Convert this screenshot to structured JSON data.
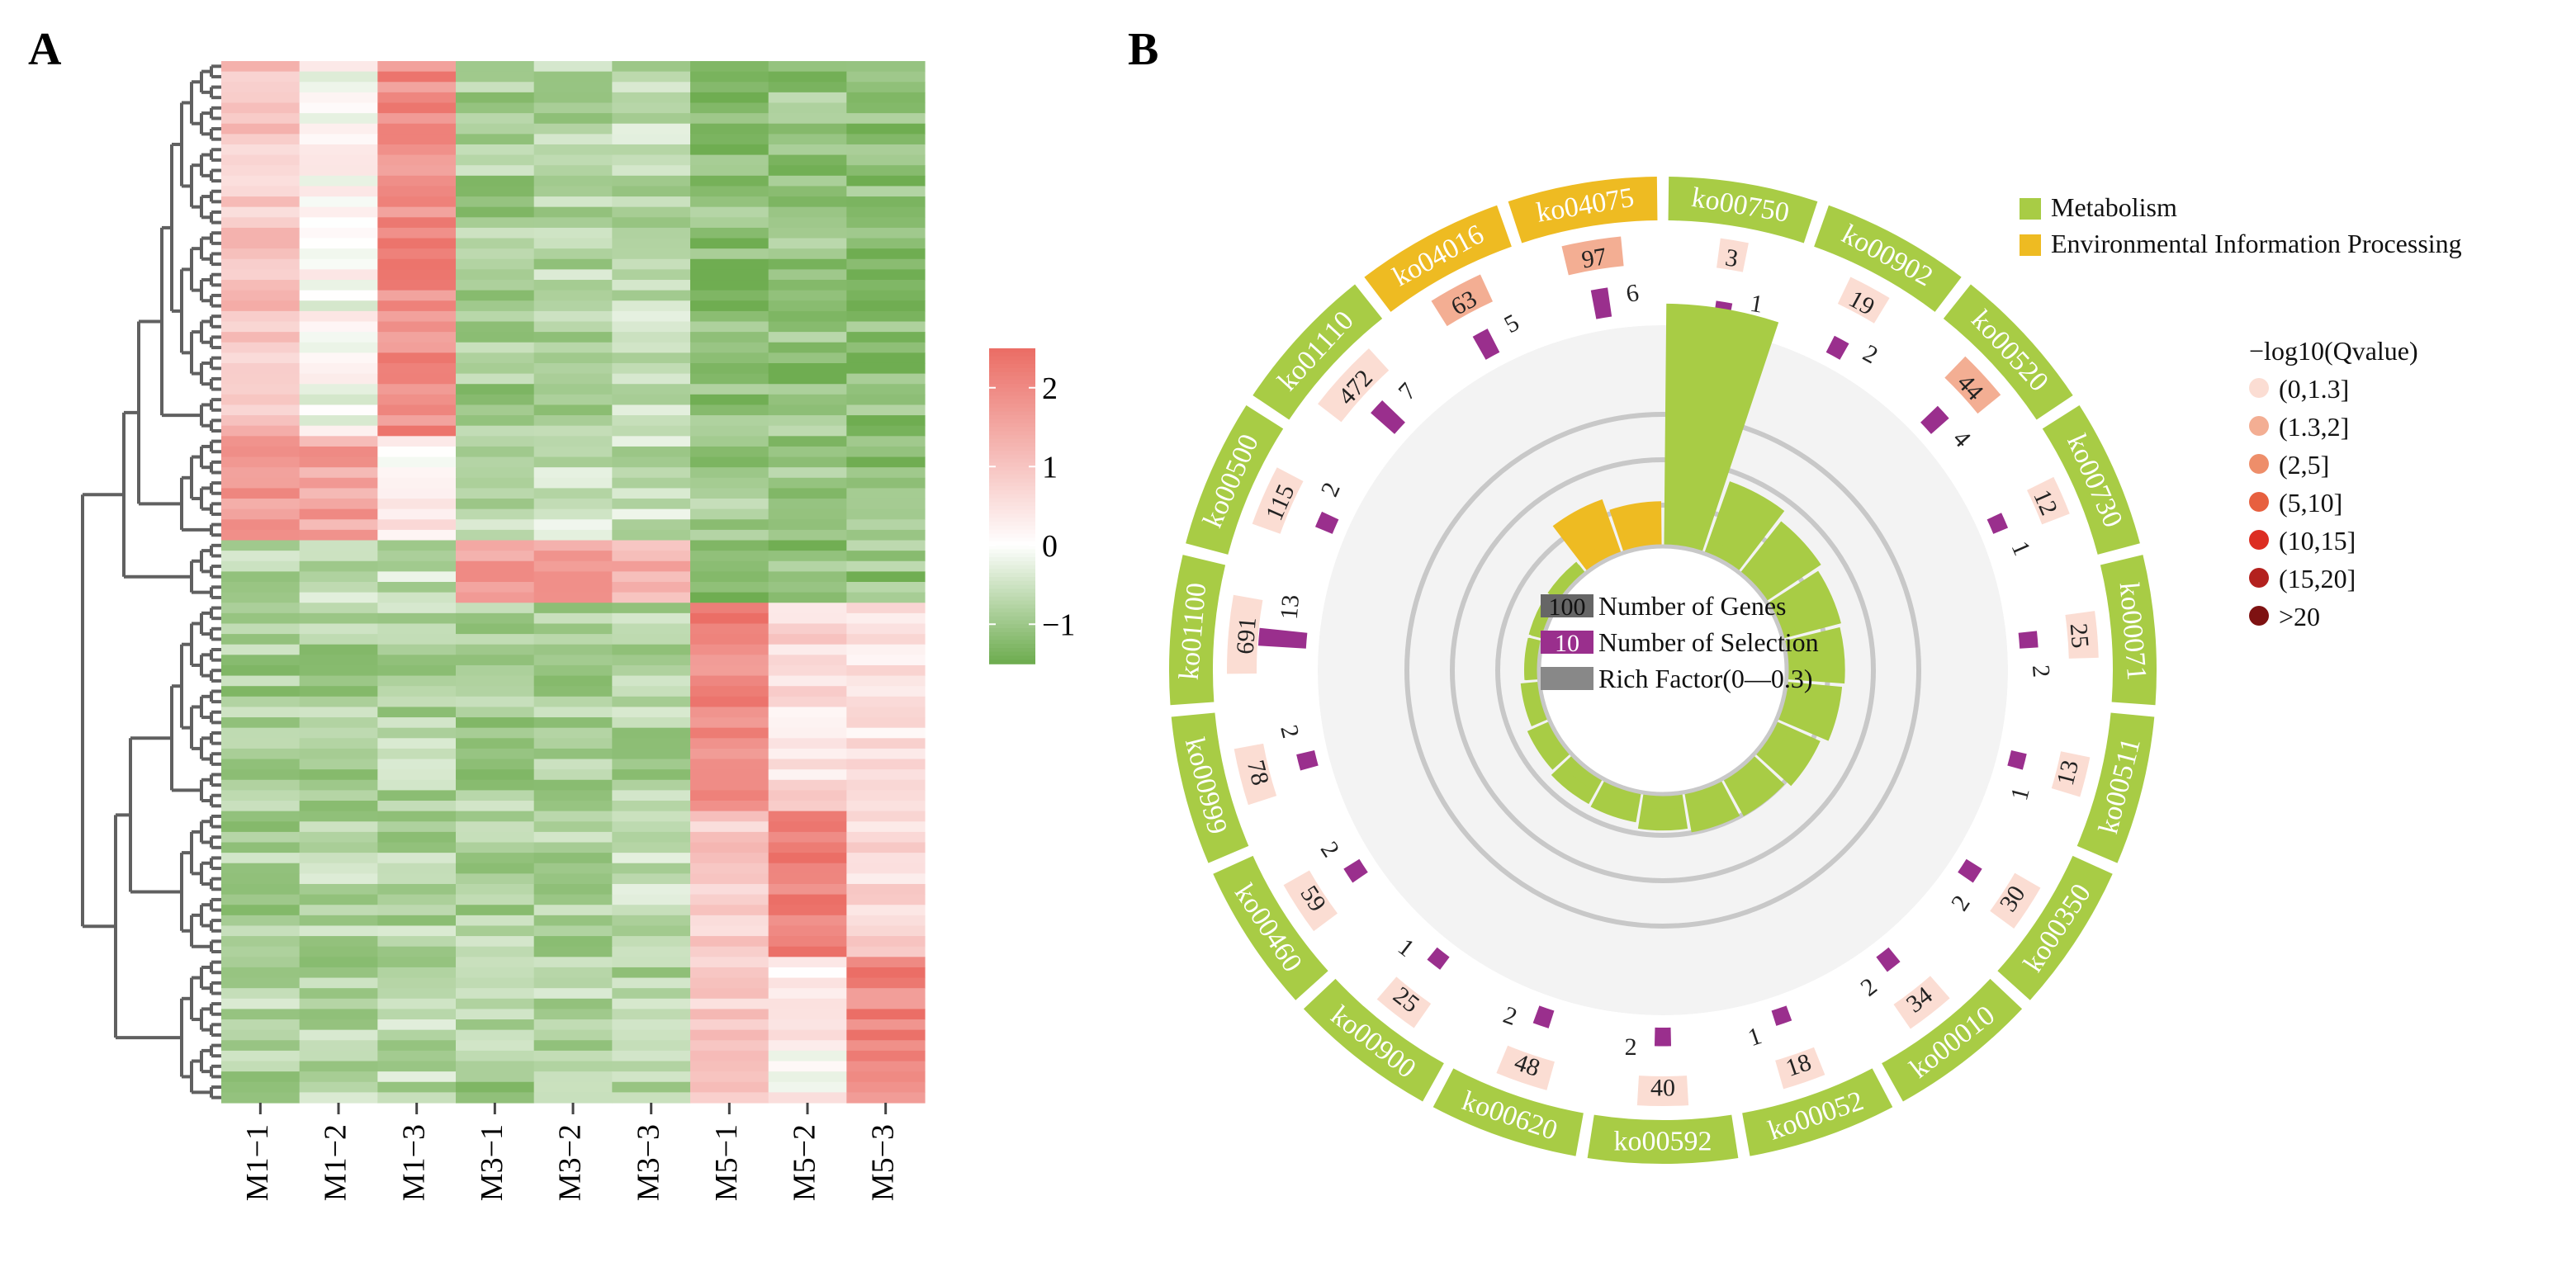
{
  "panel_a_label": "A",
  "panel_b_label": "B",
  "chart_data": [
    {
      "type": "heatmap",
      "panel": "A",
      "columns": [
        "M1−1",
        "M1−2",
        "M1−3",
        "M3−1",
        "M3−2",
        "M3−3",
        "M5−1",
        "M5−2",
        "M5−3"
      ],
      "n_rows": 100,
      "color_scale": {
        "low": "#6FAD51",
        "mid": "#FFFFFF",
        "high": "#EB6E66",
        "range": [
          -1.5,
          2.5
        ]
      },
      "colorbar_ticks": [
        "2",
        "1",
        "0",
        "−1"
      ],
      "colorbar_tick_values": [
        2,
        1,
        0,
        -1
      ],
      "row_clusters": [
        {
          "rows": [
            0,
            36
          ],
          "pattern": [
            1.0,
            0.0,
            2.0,
            -0.9,
            -0.8,
            -0.7,
            -1.2,
            -1.1,
            -1.2
          ]
        },
        {
          "rows": [
            36,
            46
          ],
          "pattern": [
            1.8,
            1.6,
            0.3,
            -0.6,
            -0.5,
            -0.6,
            -1.0,
            -1.0,
            -1.1
          ]
        },
        {
          "rows": [
            46,
            52
          ],
          "pattern": [
            -0.8,
            -0.6,
            -0.6,
            1.6,
            1.5,
            1.4,
            -1.3,
            -1.2,
            -1.1
          ]
        },
        {
          "rows": [
            52,
            72
          ],
          "pattern": [
            -0.9,
            -0.9,
            -0.8,
            -0.9,
            -0.9,
            -0.8,
            2.1,
            0.6,
            0.5
          ]
        },
        {
          "rows": [
            72,
            86
          ],
          "pattern": [
            -0.9,
            -0.8,
            -0.8,
            -0.8,
            -0.8,
            -0.7,
            0.9,
            2.1,
            0.6
          ]
        },
        {
          "rows": [
            86,
            100
          ],
          "pattern": [
            -0.8,
            -0.8,
            -0.7,
            -0.9,
            -0.8,
            -0.8,
            0.8,
            0.2,
            2.1
          ]
        }
      ]
    },
    {
      "type": "circos",
      "panel": "B",
      "categories": [
        {
          "id": "ko04075",
          "class": "Environmental Information Processing",
          "genes": 97,
          "selection": 6,
          "rich": 0.062,
          "qbin": 1
        },
        {
          "id": "ko00750",
          "class": "Metabolism",
          "genes": 3,
          "selection": 1,
          "rich": 0.333,
          "qbin": 0
        },
        {
          "id": "ko00902",
          "class": "Metabolism",
          "genes": 19,
          "selection": 2,
          "rich": 0.105,
          "qbin": 0
        },
        {
          "id": "ko00520",
          "class": "Metabolism",
          "genes": 44,
          "selection": 4,
          "rich": 0.091,
          "qbin": 1
        },
        {
          "id": "ko00730",
          "class": "Metabolism",
          "genes": 12,
          "selection": 1,
          "rich": 0.083,
          "qbin": 0
        },
        {
          "id": "ko00071",
          "class": "Metabolism",
          "genes": 25,
          "selection": 2,
          "rich": 0.08,
          "qbin": 0
        },
        {
          "id": "ko00511",
          "class": "Metabolism",
          "genes": 13,
          "selection": 1,
          "rich": 0.077,
          "qbin": 0
        },
        {
          "id": "ko00350",
          "class": "Metabolism",
          "genes": 30,
          "selection": 2,
          "rich": 0.067,
          "qbin": 0
        },
        {
          "id": "ko00010",
          "class": "Metabolism",
          "genes": 34,
          "selection": 2,
          "rich": 0.059,
          "qbin": 0
        },
        {
          "id": "ko00052",
          "class": "Metabolism",
          "genes": 18,
          "selection": 1,
          "rich": 0.056,
          "qbin": 0
        },
        {
          "id": "ko00592",
          "class": "Metabolism",
          "genes": 40,
          "selection": 2,
          "rich": 0.05,
          "qbin": 0
        },
        {
          "id": "ko00620",
          "class": "Metabolism",
          "genes": 48,
          "selection": 2,
          "rich": 0.042,
          "qbin": 0
        },
        {
          "id": "ko00900",
          "class": "Metabolism",
          "genes": 25,
          "selection": 1,
          "rich": 0.04,
          "qbin": 0
        },
        {
          "id": "ko00460",
          "class": "Metabolism",
          "genes": 59,
          "selection": 2,
          "rich": 0.034,
          "qbin": 0
        },
        {
          "id": "ko00999",
          "class": "Metabolism",
          "genes": 78,
          "selection": 2,
          "rich": 0.026,
          "qbin": 0
        },
        {
          "id": "ko01100",
          "class": "Metabolism",
          "genes": 691,
          "selection": 13,
          "rich": 0.019,
          "qbin": 0
        },
        {
          "id": "ko00500",
          "class": "Metabolism",
          "genes": 115,
          "selection": 2,
          "rich": 0.017,
          "qbin": 0
        },
        {
          "id": "ko01110",
          "class": "Metabolism",
          "genes": 472,
          "selection": 7,
          "rich": 0.015,
          "qbin": 0
        },
        {
          "id": "ko04016",
          "class": "Environmental Information Processing",
          "genes": 63,
          "selection": 5,
          "rich": 0.079,
          "qbin": 1
        }
      ],
      "legend_classes": [
        {
          "label": "Metabolism",
          "color": "#A8CC45"
        },
        {
          "label": "Environmental Information Processing",
          "color": "#EEBB22"
        }
      ],
      "qvalue_title": "−log10(Qvalue)",
      "qvalue_bins": [
        {
          "label": "(0,1.3]",
          "color": "#FBDDD3"
        },
        {
          "label": "(1.3,2]",
          "color": "#F3AE93"
        },
        {
          "label": "(2,5]",
          "color": "#EE8E6A"
        },
        {
          "label": "(5,10]",
          "color": "#E7603F"
        },
        {
          "label": "(10,15]",
          "color": "#DC2E22"
        },
        {
          "label": "(15,20]",
          "color": "#B3211E"
        },
        {
          "label": ">20",
          "color": "#7E1212"
        }
      ],
      "center_legend": [
        {
          "key": "100",
          "label": "Number of Genes",
          "color": "#666666"
        },
        {
          "key": "10",
          "label": "Number of Selection",
          "color": "#9A2F8D"
        },
        {
          "key": "",
          "label": "Rich Factor(0—0.3)",
          "color": "#888888"
        }
      ],
      "rich_factor_range": [
        0,
        0.3
      ]
    }
  ]
}
